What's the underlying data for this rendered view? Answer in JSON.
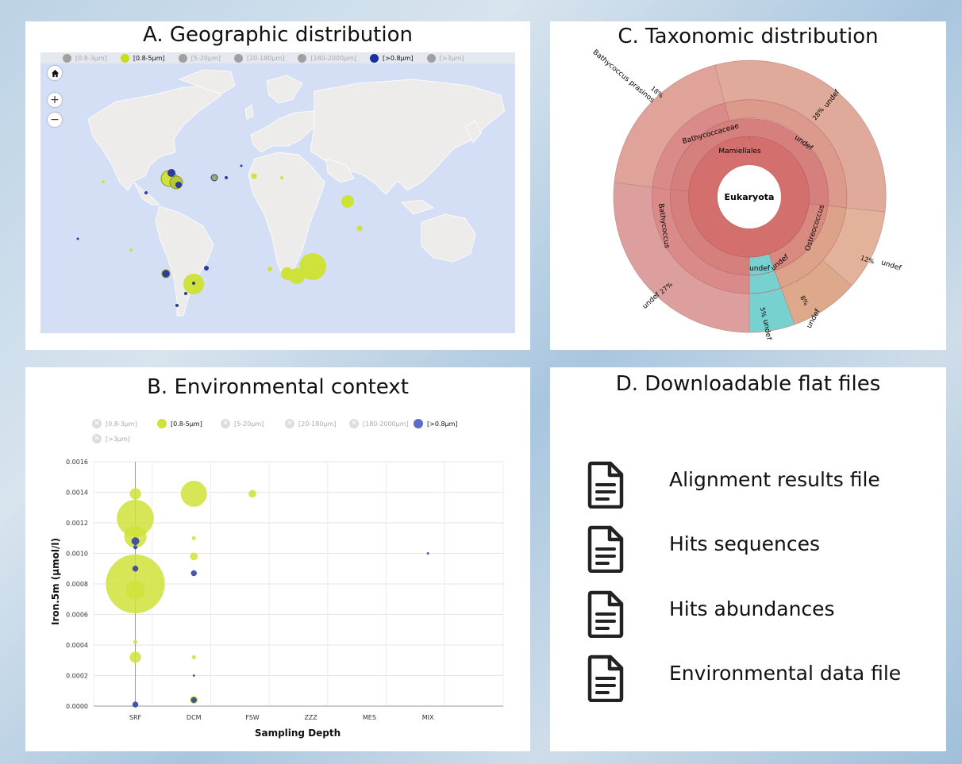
{
  "panels": {
    "a_title": "A. Geographic distribution",
    "b_title": "B. Environmental context",
    "c_title": "C. Taxonomic distribution",
    "d_title": "D. Downloadable flat files"
  },
  "legend": {
    "items": [
      {
        "label": "[0.8-3μm]",
        "active": false,
        "color": "#a0a0a0"
      },
      {
        "label": "[0.8-5μm]",
        "active": true,
        "color": "#c8dc1e"
      },
      {
        "label": "[5-20μm]",
        "active": false,
        "color": "#a0a0a0"
      },
      {
        "label": "[20-180μm]",
        "active": false,
        "color": "#a0a0a0"
      },
      {
        "label": "[180-2000μm]",
        "active": false,
        "color": "#a0a0a0"
      },
      {
        "label": "[>0.8μm]",
        "active": true,
        "color": "#1a2fa0"
      },
      {
        "label": "[>3μm]",
        "active": false,
        "color": "#a0a0a0"
      }
    ]
  },
  "map_controls": {
    "home_icon": "home-icon",
    "zoom_in": "+",
    "zoom_out": "−"
  },
  "chart_data": {
    "type": "scatter",
    "title": "",
    "xlabel": "Sampling Depth",
    "ylabel": "Iron.5m (μmol/l)",
    "categories": [
      "SRF",
      "DCM",
      "FSW",
      "ZZZ",
      "MES",
      "MIX"
    ],
    "ylim": [
      0,
      0.0016
    ],
    "yticks": [
      "0.0000",
      "0.0002",
      "0.0004",
      "0.0006",
      "0.0008",
      "0.0010",
      "0.0012",
      "0.0014",
      "0.0016"
    ],
    "grid": true,
    "series": [
      {
        "name": "[0.8-5μm]",
        "color": "#cfe23a",
        "points": [
          {
            "x": "SRF",
            "y": 0.00139,
            "size": 3
          },
          {
            "x": "SRF",
            "y": 0.00123,
            "size": 10
          },
          {
            "x": "SRF",
            "y": 0.00111,
            "size": 6
          },
          {
            "x": "SRF",
            "y": 0.0008,
            "size": 16
          },
          {
            "x": "SRF",
            "y": 0.00076,
            "size": 5
          },
          {
            "x": "SRF",
            "y": 0.00042,
            "size": 1
          },
          {
            "x": "SRF",
            "y": 0.00032,
            "size": 3
          },
          {
            "x": "DCM",
            "y": 0.00139,
            "size": 7
          },
          {
            "x": "DCM",
            "y": 0.0011,
            "size": 1
          },
          {
            "x": "DCM",
            "y": 0.00098,
            "size": 2
          },
          {
            "x": "DCM",
            "y": 0.00032,
            "size": 1
          },
          {
            "x": "DCM",
            "y": 4e-05,
            "size": 2
          },
          {
            "x": "FSW",
            "y": 0.00139,
            "size": 2
          }
        ]
      },
      {
        "name": "[>0.8μm]",
        "color": "#2a3c9e",
        "points": [
          {
            "x": "SRF",
            "y": 0.00108,
            "size": 2
          },
          {
            "x": "SRF",
            "y": 0.00104,
            "size": 1
          },
          {
            "x": "SRF",
            "y": 0.0009,
            "size": 1.5
          },
          {
            "x": "SRF",
            "y": 1e-05,
            "size": 1.5
          },
          {
            "x": "DCM",
            "y": 0.00087,
            "size": 1.5
          },
          {
            "x": "DCM",
            "y": 0.0002,
            "size": 0.5
          },
          {
            "x": "DCM",
            "y": 4e-05,
            "size": 1.5
          },
          {
            "x": "MIX",
            "y": 0.001,
            "size": 0.5
          }
        ]
      }
    ]
  },
  "sunburst": {
    "center": "Eukaryota",
    "ring1": [
      "Mamiellales"
    ],
    "ring2": [
      "Bathycoccaceae",
      "undef",
      "Ostreococcus"
    ],
    "ring3": [
      "Bathycoccus",
      "undef",
      "undef"
    ],
    "outer": [
      {
        "label": "Bathycoccus prasinos",
        "pct": "18%"
      },
      {
        "label": "undef",
        "pct": "28%"
      },
      {
        "label": "undef",
        "pct": "12%"
      },
      {
        "label": "undef",
        "pct": "8%"
      },
      {
        "label": "undef",
        "pct": "5%"
      },
      {
        "label": "undef",
        "pct": "27%"
      }
    ]
  },
  "files": [
    {
      "label": "Alignment results file",
      "icon": "file-document-icon"
    },
    {
      "label": "Hits sequences",
      "icon": "file-document-icon"
    },
    {
      "label": "Hits abundances",
      "icon": "file-document-icon"
    },
    {
      "label": "Environmental data file",
      "icon": "file-document-icon"
    }
  ]
}
